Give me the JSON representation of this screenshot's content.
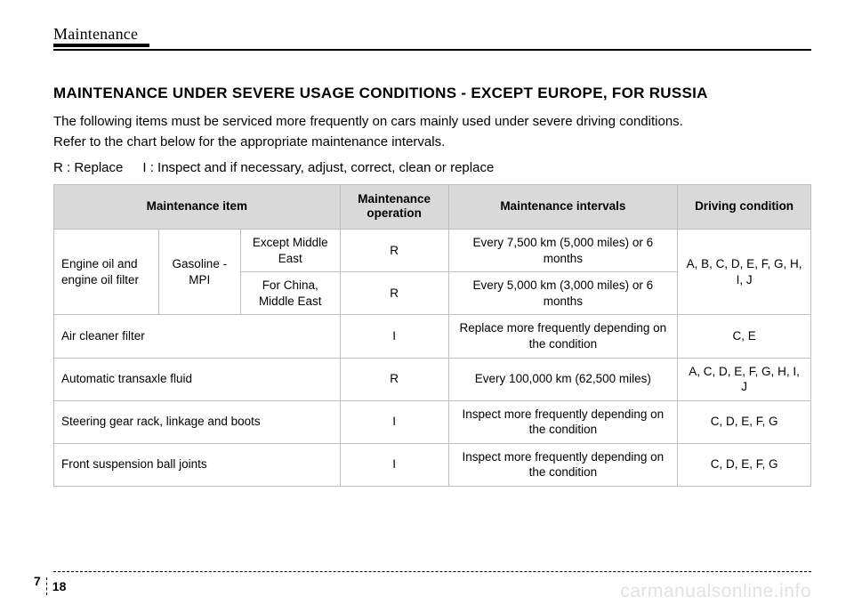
{
  "header": {
    "section_label": "Maintenance"
  },
  "title": "MAINTENANCE UNDER SEVERE USAGE CONDITIONS - EXCEPT EUROPE, FOR RUSSIA",
  "intro": {
    "line1": "The following items must be serviced more frequently on cars mainly used under severe driving conditions.",
    "line2": "Refer to the chart below for the appropriate maintenance intervals."
  },
  "legend": {
    "r": "R : Replace",
    "i": "I : Inspect and if necessary, adjust, correct, clean or replace"
  },
  "table": {
    "headers": {
      "item": "Maintenance item",
      "operation": "Maintenance operation",
      "intervals": "Maintenance intervals",
      "condition": "Driving condition"
    },
    "rows": {
      "engine_oil_label": "Engine oil and engine oil filter",
      "gasoline_mpi": "Gasoline - MPI",
      "except_me": "Except Middle East",
      "for_china_me": "For China, Middle East",
      "r1_op": "R",
      "r1_int": "Every 7,500 km (5,000 miles) or 6 months",
      "r2_op": "R",
      "r2_int": "Every 5,000 km (3,000 miles) or 6 months",
      "engine_cond": "A, B, C, D, E, F, G, H, I, J",
      "air_item": "Air cleaner filter",
      "air_op": "I",
      "air_int": "Replace more frequently depending on the condition",
      "air_cond": "C, E",
      "atf_item": "Automatic transaxle fluid",
      "atf_op": "R",
      "atf_int": "Every 100,000 km (62,500 miles)",
      "atf_cond": "A, C, D, E, F, G, H, I, J",
      "steer_item": "Steering gear rack, linkage and boots",
      "steer_op": "I",
      "steer_int": "Inspect more frequently depending on the condition",
      "steer_cond": "C, D, E, F, G",
      "susp_item": "Front suspension ball joints",
      "susp_op": "I",
      "susp_int": "Inspect more frequently depending on the condition",
      "susp_cond": "C, D, E, F, G"
    }
  },
  "footer": {
    "chapter": "7",
    "page": "18"
  },
  "watermark": "carmanualsonline.info"
}
